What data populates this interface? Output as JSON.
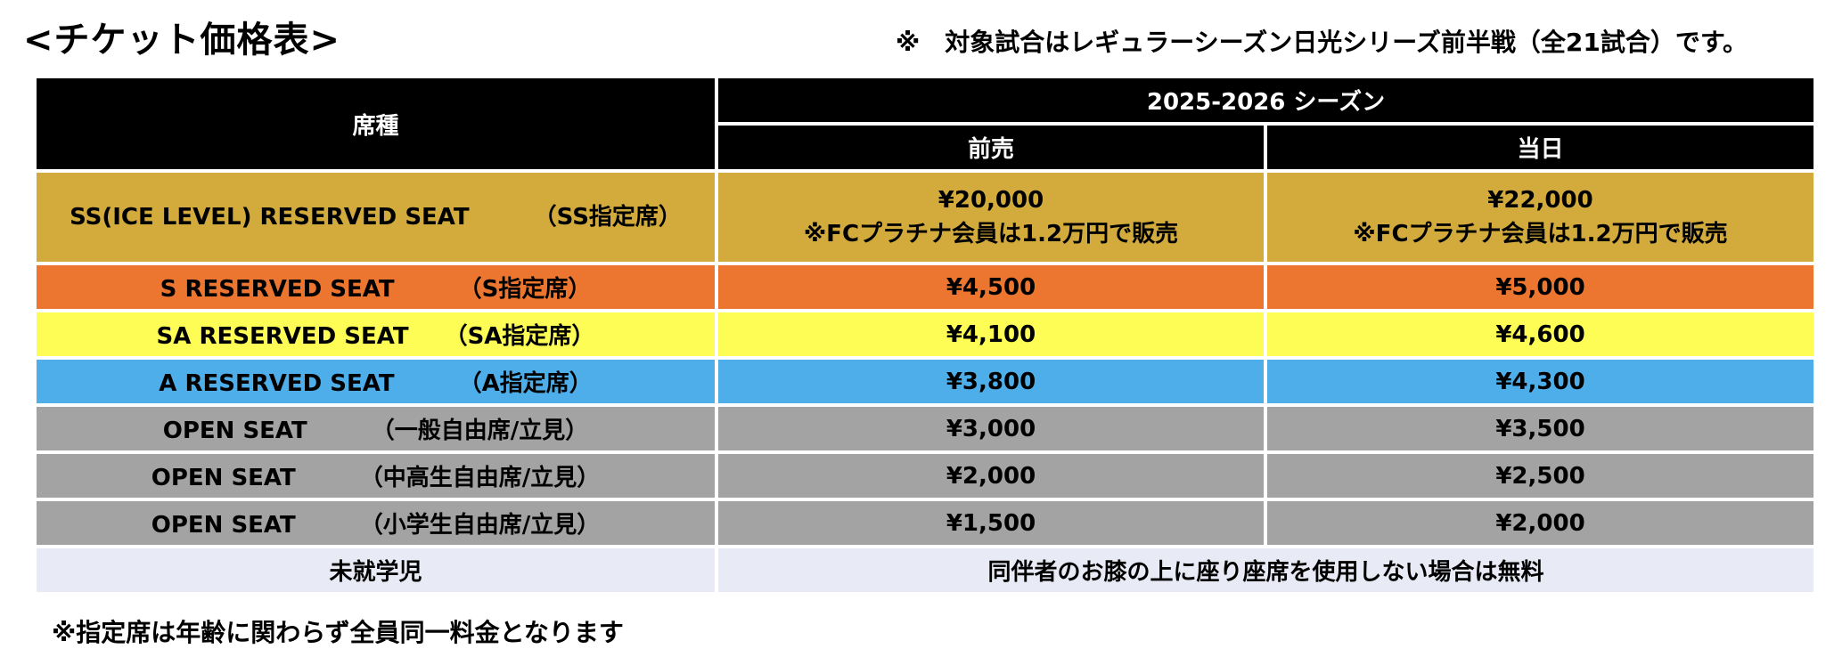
{
  "page_title": "<チケット価格表>",
  "top_note": "※　対象試合はレギュラーシーズン日光シリーズ前半戦（全21試合）です。",
  "bottom_note": "※指定席は年齢に関わらず全員同一料金となります",
  "table": {
    "header": {
      "seat_type": "席種",
      "season": "2025-2026 シーズン",
      "advance": "前売",
      "same_day": "当日"
    },
    "rows": [
      {
        "seat_en": "SS(ICE LEVEL) RESERVED SEAT",
        "seat_jp": "（SS指定席）",
        "advance_price": "¥20,000",
        "advance_note": "※FCプラチナ会員は1.2万円で販売",
        "same_day_price": "¥22,000",
        "same_day_note": "※FCプラチナ会員は1.2万円で販売",
        "color": "#d2ab3c"
      },
      {
        "seat_en": "S RESERVED SEAT",
        "seat_jp": "（S指定席）",
        "advance_price": "¥4,500",
        "same_day_price": "¥5,000",
        "color": "#ec7630"
      },
      {
        "seat_en": "SA RESERVED SEAT",
        "seat_jp": "（SA指定席）",
        "advance_price": "¥4,100",
        "same_day_price": "¥4,600",
        "color": "#fdfd55"
      },
      {
        "seat_en": "A RESERVED SEAT",
        "seat_jp": "（A指定席）",
        "advance_price": "¥3,800",
        "same_day_price": "¥4,300",
        "color": "#4eaeea"
      },
      {
        "seat_en": "OPEN SEAT",
        "seat_jp": "（一般自由席/立見）",
        "advance_price": "¥3,000",
        "same_day_price": "¥3,500",
        "color": "#a3a3a3"
      },
      {
        "seat_en": "OPEN SEAT",
        "seat_jp": "（中高生自由席/立見）",
        "advance_price": "¥2,000",
        "same_day_price": "¥2,500",
        "color": "#a3a3a3"
      },
      {
        "seat_en": "OPEN SEAT",
        "seat_jp": "（小学生自由席/立見）",
        "advance_price": "¥1,500",
        "same_day_price": "¥2,000",
        "color": "#a3a3a3"
      }
    ],
    "preschool": {
      "label": "未就学児",
      "note": "同伴者のお膝の上に座り座席を使用しない場合は無料",
      "color": "#e8eaf5"
    }
  }
}
